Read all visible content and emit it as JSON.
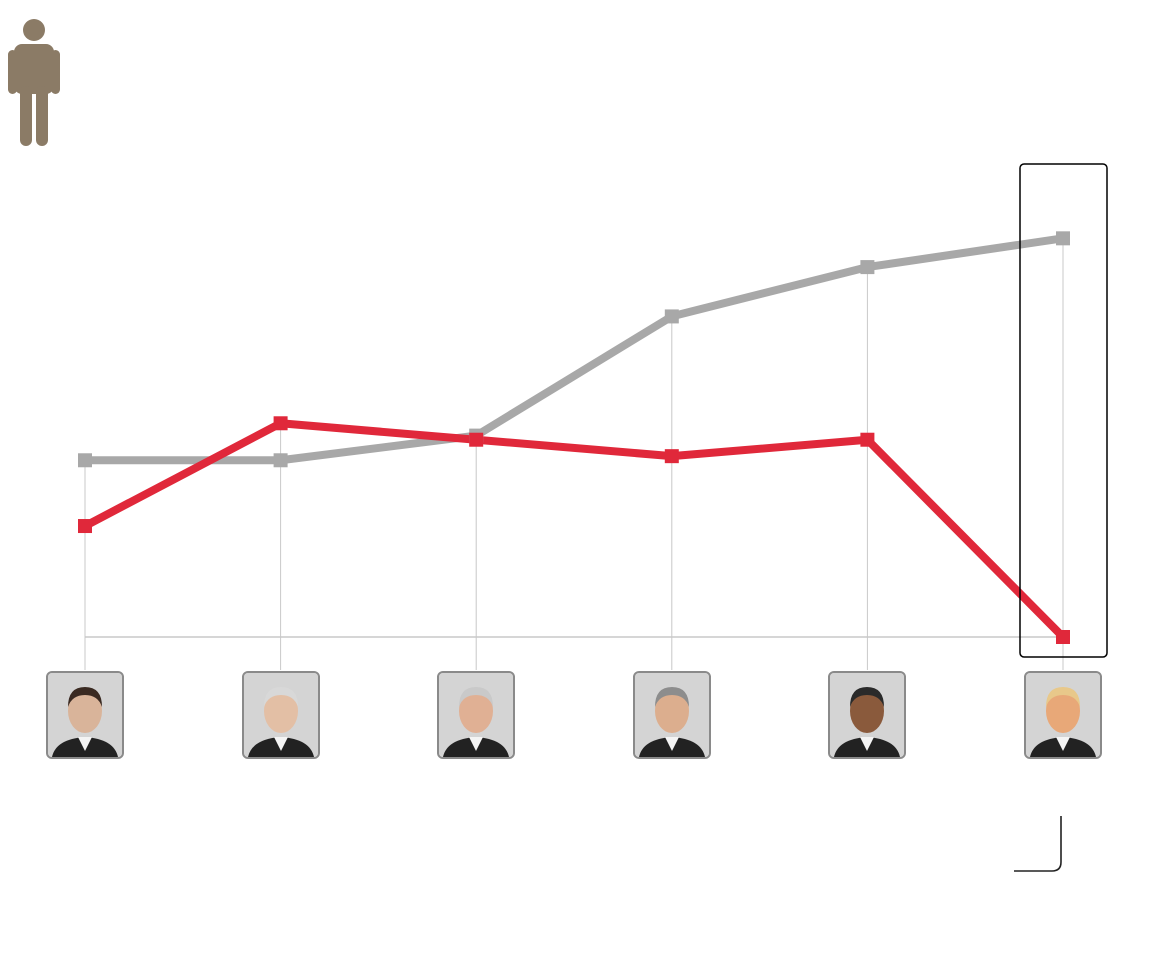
{
  "icons": {
    "person": "person-icon",
    "portrait": "portrait-icon"
  },
  "colors": {
    "person_icon": "#8b7b66",
    "series_red": "#e0283a",
    "series_gray": "#a8a8a8",
    "grid": "#c8c8c8",
    "baseline": "#c8c8c8",
    "highlight_box": "#000000"
  },
  "chart_data": {
    "type": "line",
    "categories": [
      "",
      "",
      "",
      "",
      "",
      ""
    ],
    "highlighted_category_index": 5,
    "grid": true,
    "legend": "none",
    "ylim": [
      0,
      100
    ],
    "series": [
      {
        "color": "#e0283a",
        "marker": "square",
        "values": [
          27,
          52,
          48,
          44,
          48,
          0
        ]
      },
      {
        "color": "#a8a8a8",
        "marker": "square",
        "values": [
          43,
          43,
          49,
          78,
          90,
          97
        ]
      }
    ]
  }
}
